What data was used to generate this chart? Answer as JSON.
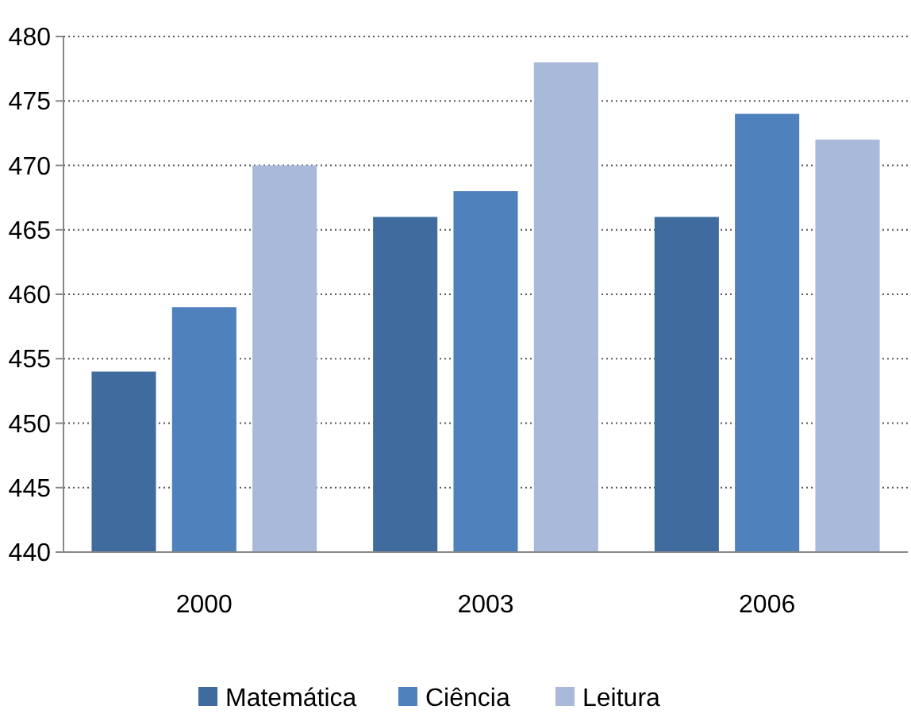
{
  "chart_data": {
    "type": "bar",
    "categories": [
      "2000",
      "2003",
      "2006"
    ],
    "series": [
      {
        "name": "Matemática",
        "color": "#3f6b9f",
        "values": [
          454,
          466,
          466
        ]
      },
      {
        "name": "Ciência",
        "color": "#4f81bd",
        "values": [
          459,
          468,
          474
        ]
      },
      {
        "name": "Leitura",
        "color": "#a9b9d9",
        "values": [
          470,
          478,
          472
        ]
      }
    ],
    "ylim": [
      440,
      480
    ],
    "yticks": [
      440,
      445,
      450,
      455,
      460,
      465,
      470,
      475,
      480
    ],
    "grid": "y",
    "legend": "bottom"
  }
}
